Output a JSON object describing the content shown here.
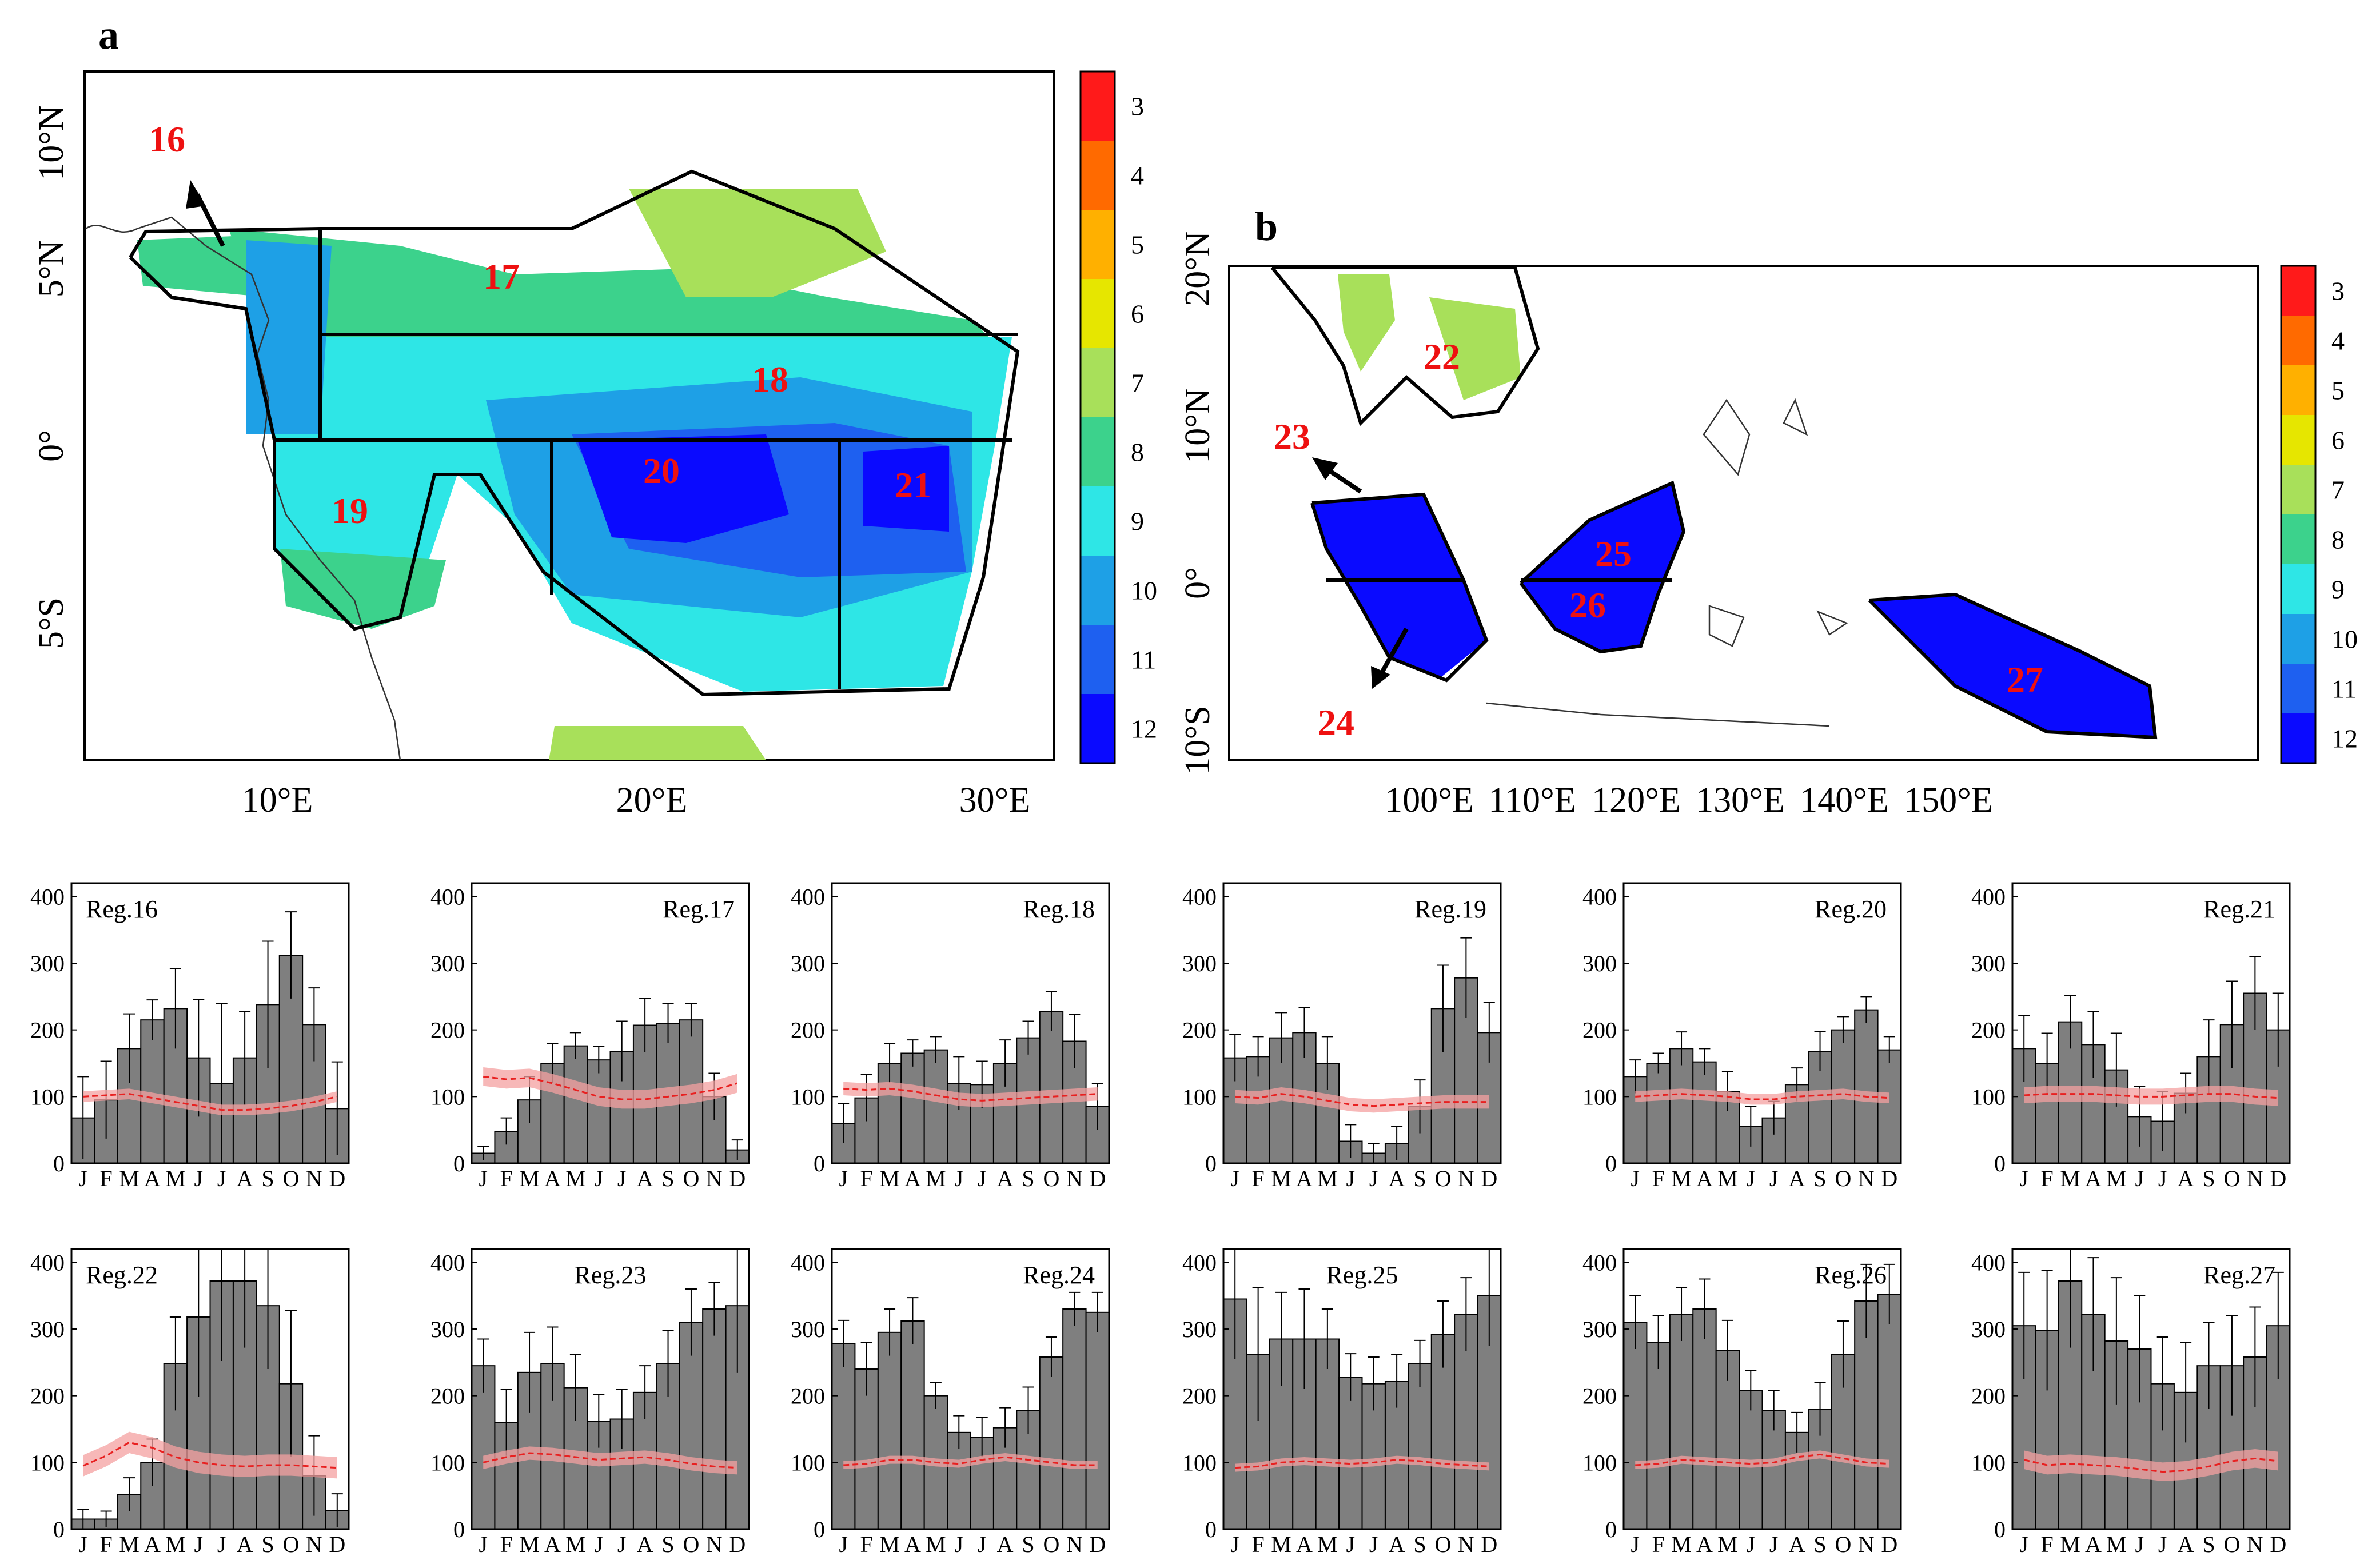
{
  "panel_a": {
    "label": "a",
    "lat_ticks": [
      "10°N",
      "5°N",
      "0°",
      "5°S"
    ],
    "lon_ticks": [
      "10°E",
      "20°E",
      "30°E"
    ],
    "regions": [
      {
        "id": "16",
        "name": "16"
      },
      {
        "id": "17",
        "name": "17"
      },
      {
        "id": "18",
        "name": "18"
      },
      {
        "id": "19",
        "name": "19"
      },
      {
        "id": "20",
        "name": "20"
      },
      {
        "id": "21",
        "name": "21"
      }
    ]
  },
  "panel_b": {
    "label": "b",
    "lat_ticks": [
      "20°N",
      "10°N",
      "0°",
      "10°S"
    ],
    "lon_ticks": [
      "100°E",
      "110°E",
      "120°E",
      "130°E",
      "140°E",
      "150°E"
    ],
    "regions": [
      {
        "id": "22",
        "name": "22"
      },
      {
        "id": "23",
        "name": "23"
      },
      {
        "id": "24",
        "name": "24"
      },
      {
        "id": "25",
        "name": "25"
      },
      {
        "id": "26",
        "name": "26"
      },
      {
        "id": "27",
        "name": "27"
      }
    ]
  },
  "colorbar": {
    "labels": [
      "3",
      "4",
      "5",
      "6",
      "7",
      "8",
      "9",
      "10",
      "11",
      "12"
    ],
    "colors": [
      "#ff1a1a",
      "#ff6a00",
      "#ffb000",
      "#e6e600",
      "#a8e05a",
      "#3cd28c",
      "#2ee6e6",
      "#1ea0e6",
      "#1e60f0",
      "#0a0aff"
    ]
  },
  "colors": {
    "bar": "#7f7f7f",
    "climatology_line": "#e82020",
    "climatology_band": "#f4a0a0",
    "region_label": "#ee1111"
  },
  "chart_data": [
    {
      "type": "bar",
      "title": "Reg.16",
      "categories": [
        "J",
        "F",
        "M",
        "A",
        "M",
        "J",
        "J",
        "A",
        "S",
        "O",
        "N",
        "D"
      ],
      "values": [
        68,
        95,
        172,
        215,
        232,
        158,
        120,
        158,
        238,
        312,
        208,
        82
      ],
      "errors": [
        62,
        58,
        52,
        30,
        60,
        88,
        120,
        70,
        95,
        65,
        55,
        70
      ],
      "clim": [
        100,
        102,
        104,
        98,
        92,
        86,
        80,
        80,
        82,
        86,
        92,
        100
      ],
      "clim_band": 8,
      "ylim": [
        0,
        420
      ],
      "yticks": [
        0,
        100,
        200,
        300,
        400
      ]
    },
    {
      "type": "bar",
      "title": "Reg.17",
      "categories": [
        "J",
        "F",
        "M",
        "A",
        "M",
        "J",
        "J",
        "A",
        "S",
        "O",
        "N",
        "D"
      ],
      "values": [
        15,
        48,
        95,
        150,
        176,
        155,
        168,
        207,
        210,
        215,
        100,
        20
      ],
      "errors": [
        10,
        20,
        35,
        30,
        20,
        20,
        45,
        40,
        30,
        25,
        35,
        15
      ],
      "clim": [
        130,
        126,
        128,
        120,
        110,
        100,
        96,
        96,
        100,
        104,
        110,
        120
      ],
      "clim_band": 14,
      "ylim": [
        0,
        420
      ],
      "yticks": [
        0,
        100,
        200,
        300,
        400
      ]
    },
    {
      "type": "bar",
      "title": "Reg.18",
      "categories": [
        "J",
        "F",
        "M",
        "A",
        "M",
        "J",
        "J",
        "A",
        "S",
        "O",
        "N",
        "D"
      ],
      "values": [
        60,
        98,
        150,
        165,
        170,
        120,
        118,
        150,
        188,
        228,
        183,
        85
      ],
      "errors": [
        30,
        35,
        30,
        20,
        20,
        40,
        35,
        35,
        25,
        30,
        40,
        35
      ],
      "clim": [
        112,
        110,
        112,
        108,
        102,
        96,
        94,
        96,
        98,
        100,
        102,
        104
      ],
      "clim_band": 10,
      "ylim": [
        0,
        420
      ],
      "yticks": [
        0,
        100,
        200,
        300,
        400
      ]
    },
    {
      "type": "bar",
      "title": "Reg.19",
      "categories": [
        "J",
        "F",
        "M",
        "A",
        "M",
        "J",
        "J",
        "A",
        "S",
        "O",
        "N",
        "D"
      ],
      "values": [
        158,
        160,
        188,
        196,
        150,
        33,
        15,
        30,
        85,
        232,
        278,
        196
      ],
      "errors": [
        35,
        30,
        38,
        38,
        40,
        25,
        15,
        25,
        40,
        65,
        60,
        45
      ],
      "clim": [
        100,
        98,
        104,
        100,
        94,
        88,
        86,
        88,
        90,
        92,
        92,
        92
      ],
      "clim_band": 10,
      "ylim": [
        0,
        420
      ],
      "yticks": [
        0,
        100,
        200,
        300,
        400
      ]
    },
    {
      "type": "bar",
      "title": "Reg.20",
      "categories": [
        "J",
        "F",
        "M",
        "A",
        "M",
        "J",
        "J",
        "A",
        "S",
        "O",
        "N",
        "D"
      ],
      "values": [
        130,
        150,
        172,
        152,
        108,
        55,
        68,
        118,
        168,
        200,
        230,
        170
      ],
      "errors": [
        25,
        15,
        25,
        20,
        30,
        30,
        25,
        25,
        30,
        20,
        20,
        20
      ],
      "clim": [
        100,
        102,
        104,
        102,
        100,
        96,
        96,
        100,
        102,
        104,
        100,
        98
      ],
      "clim_band": 8,
      "ylim": [
        0,
        420
      ],
      "yticks": [
        0,
        100,
        200,
        300,
        400
      ]
    },
    {
      "type": "bar",
      "title": "Reg.21",
      "categories": [
        "J",
        "F",
        "M",
        "A",
        "M",
        "J",
        "J",
        "A",
        "S",
        "O",
        "N",
        "D"
      ],
      "values": [
        172,
        150,
        212,
        178,
        140,
        70,
        63,
        105,
        160,
        208,
        255,
        200
      ],
      "errors": [
        50,
        45,
        40,
        50,
        55,
        45,
        45,
        30,
        55,
        65,
        55,
        55
      ],
      "clim": [
        102,
        104,
        104,
        104,
        102,
        100,
        100,
        102,
        104,
        104,
        100,
        98
      ],
      "clim_band": 12,
      "ylim": [
        0,
        420
      ],
      "yticks": [
        0,
        100,
        200,
        300,
        400
      ]
    },
    {
      "type": "bar",
      "title": "Reg.22",
      "categories": [
        "J",
        "F",
        "M",
        "A",
        "M",
        "J",
        "J",
        "A",
        "S",
        "O",
        "N",
        "D"
      ],
      "values": [
        15,
        15,
        52,
        100,
        248,
        318,
        372,
        372,
        335,
        218,
        80,
        28
      ],
      "errors": [
        15,
        12,
        25,
        35,
        70,
        120,
        120,
        100,
        95,
        110,
        60,
        25
      ],
      "clim": [
        95,
        110,
        130,
        122,
        108,
        100,
        96,
        94,
        96,
        96,
        94,
        92
      ],
      "clim_band": 16,
      "ylim": [
        0,
        420
      ],
      "yticks": [
        0,
        100,
        200,
        300,
        400
      ]
    },
    {
      "type": "bar",
      "title": "Reg.23",
      "categories": [
        "J",
        "F",
        "M",
        "A",
        "M",
        "J",
        "J",
        "A",
        "S",
        "O",
        "N",
        "D"
      ],
      "values": [
        245,
        160,
        235,
        248,
        212,
        162,
        165,
        205,
        248,
        310,
        330,
        335
      ],
      "errors": [
        40,
        50,
        60,
        55,
        50,
        40,
        45,
        40,
        50,
        50,
        40,
        100
      ],
      "clim": [
        100,
        108,
        114,
        112,
        108,
        104,
        106,
        108,
        104,
        98,
        94,
        92
      ],
      "clim_band": 10,
      "ylim": [
        0,
        420
      ],
      "yticks": [
        0,
        100,
        200,
        300,
        400
      ]
    },
    {
      "type": "bar",
      "title": "Reg.24",
      "categories": [
        "J",
        "F",
        "M",
        "A",
        "M",
        "J",
        "J",
        "A",
        "S",
        "O",
        "N",
        "D"
      ],
      "values": [
        278,
        240,
        295,
        312,
        200,
        145,
        138,
        152,
        178,
        258,
        330,
        325
      ],
      "errors": [
        35,
        40,
        35,
        35,
        20,
        25,
        30,
        30,
        35,
        30,
        25,
        30
      ],
      "clim": [
        96,
        98,
        104,
        104,
        100,
        98,
        104,
        108,
        104,
        100,
        96,
        96
      ],
      "clim_band": 6,
      "ylim": [
        0,
        420
      ],
      "yticks": [
        0,
        100,
        200,
        300,
        400
      ]
    },
    {
      "type": "bar",
      "title": "Reg.25",
      "categories": [
        "J",
        "F",
        "M",
        "A",
        "M",
        "J",
        "J",
        "A",
        "S",
        "O",
        "N",
        "D"
      ],
      "values": [
        345,
        262,
        285,
        285,
        285,
        228,
        218,
        222,
        248,
        292,
        322,
        350
      ],
      "errors": [
        90,
        100,
        70,
        75,
        45,
        35,
        40,
        40,
        35,
        50,
        55,
        75
      ],
      "clim": [
        92,
        94,
        100,
        102,
        100,
        98,
        100,
        104,
        102,
        98,
        96,
        94
      ],
      "clim_band": 6,
      "ylim": [
        0,
        420
      ],
      "yticks": [
        0,
        100,
        200,
        300,
        400
      ]
    },
    {
      "type": "bar",
      "title": "Reg.26",
      "categories": [
        "J",
        "F",
        "M",
        "A",
        "M",
        "J",
        "J",
        "A",
        "S",
        "O",
        "N",
        "D"
      ],
      "values": [
        310,
        280,
        322,
        330,
        268,
        208,
        178,
        145,
        180,
        262,
        342,
        352
      ],
      "errors": [
        40,
        40,
        40,
        45,
        45,
        30,
        30,
        30,
        40,
        50,
        55,
        45
      ],
      "clim": [
        96,
        98,
        104,
        102,
        100,
        98,
        100,
        108,
        112,
        106,
        100,
        98
      ],
      "clim_band": 6,
      "ylim": [
        0,
        420
      ],
      "yticks": [
        0,
        100,
        200,
        300,
        400
      ]
    },
    {
      "type": "bar",
      "title": "Reg.27",
      "categories": [
        "J",
        "F",
        "M",
        "A",
        "M",
        "J",
        "J",
        "A",
        "S",
        "O",
        "N",
        "D"
      ],
      "values": [
        305,
        298,
        372,
        322,
        282,
        270,
        218,
        205,
        245,
        245,
        258,
        305
      ],
      "errors": [
        80,
        90,
        100,
        85,
        95,
        80,
        70,
        75,
        65,
        75,
        75,
        80
      ],
      "clim": [
        104,
        96,
        98,
        96,
        94,
        90,
        86,
        88,
        94,
        102,
        106,
        102
      ],
      "clim_band": 14,
      "ylim": [
        0,
        420
      ],
      "yticks": [
        0,
        100,
        200,
        300,
        400
      ]
    }
  ]
}
